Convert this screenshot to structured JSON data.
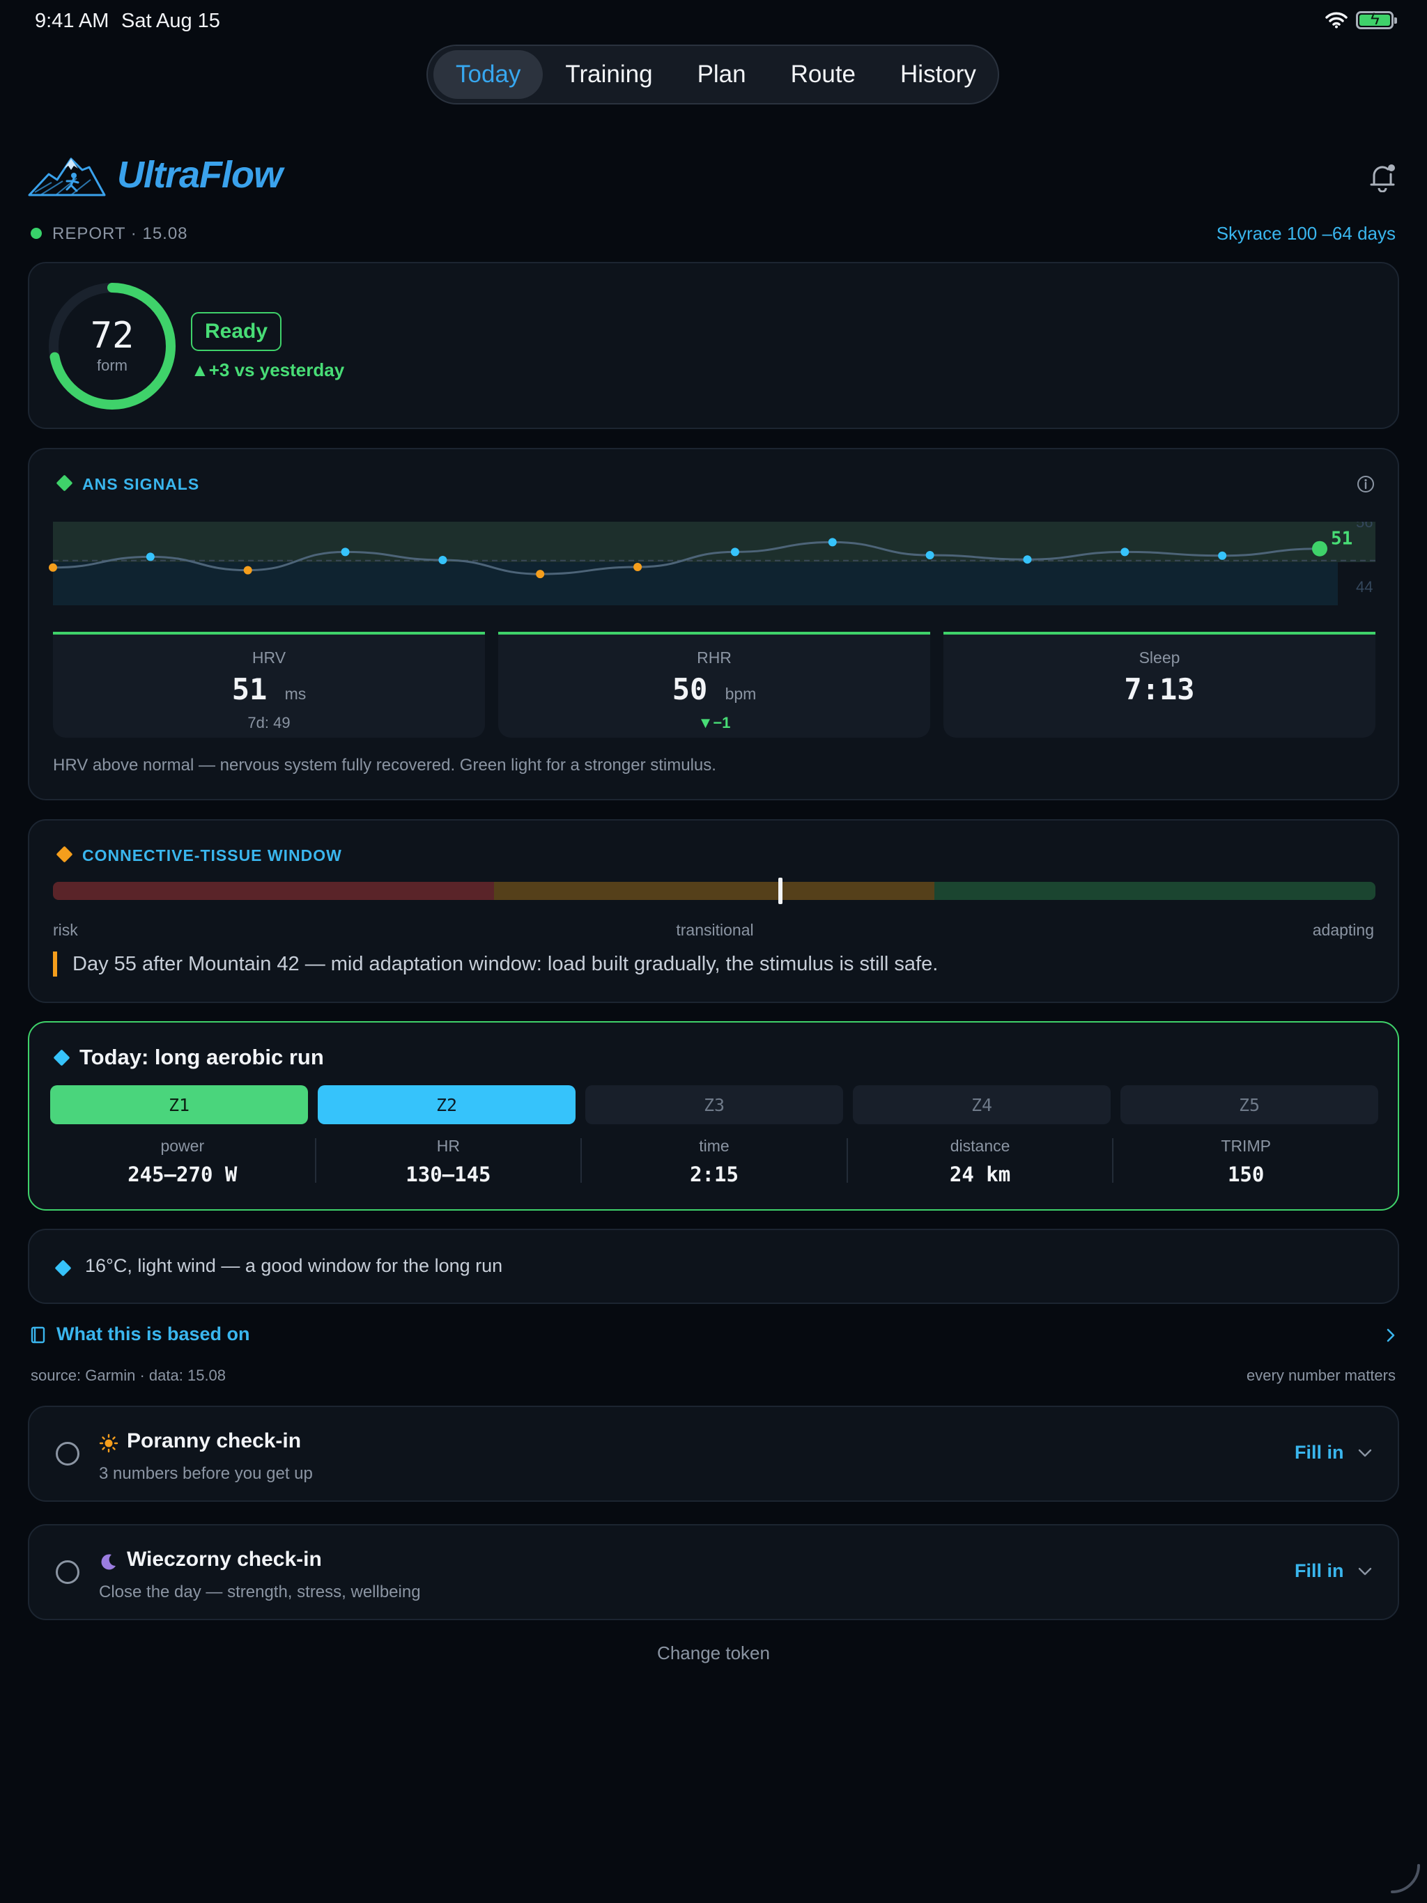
{
  "status_bar": {
    "time": "9:41 AM",
    "date": "Sat Aug 15"
  },
  "tabs": [
    {
      "label": "Today",
      "active": true
    },
    {
      "label": "Training",
      "active": false
    },
    {
      "label": "Plan",
      "active": false
    },
    {
      "label": "Route",
      "active": false
    },
    {
      "label": "History",
      "active": false
    }
  ],
  "header": {
    "brand": "UltraFlow",
    "logo_icon": "mountain-runner-icon",
    "bell_icon": "bell-icon"
  },
  "report": {
    "label": "REPORT · 15.08",
    "race": "Skyrace 100 –64 days"
  },
  "form": {
    "score": "72",
    "score_label": "form",
    "score_value": 72,
    "status": "Ready",
    "delta": "▲+3 vs yesterday"
  },
  "ans": {
    "title": "ANS SIGNALS",
    "chart_data": {
      "type": "line",
      "series": [
        {
          "values": [
            47.5,
            49.5,
            47,
            50.4,
            48.9,
            46.3,
            47.6,
            50.4,
            52.2,
            49.8,
            49,
            50.4,
            49.7,
            51
          ]
        }
      ],
      "point_status": [
        "below",
        "above",
        "below",
        "above",
        "above",
        "below",
        "below",
        "above",
        "above",
        "above",
        "above",
        "above",
        "above",
        "latest"
      ],
      "baseline": 48.8,
      "normal_band": [
        48.5,
        56
      ],
      "ylim": [
        40.5,
        56
      ],
      "tick_labels": [
        "56",
        "44"
      ],
      "last_label": "51"
    },
    "metrics": [
      {
        "label": "HRV",
        "value": "51",
        "unit": "ms",
        "sub": "7d: 49"
      },
      {
        "label": "RHR",
        "value": "50",
        "unit": "bpm",
        "sub": "▼−1"
      },
      {
        "label": "Sleep",
        "value": "7:13",
        "unit": "",
        "sub": ""
      }
    ],
    "note": "HRV above normal — nervous system fully recovered. Green light for a stronger stimulus."
  },
  "connective": {
    "title": "CONNECTIVE-TISSUE WINDOW",
    "marker_fraction": 0.55,
    "labels": {
      "left": "risk",
      "middle": "transitional",
      "right": "adapting"
    },
    "note": "Day 55 after Mountain 42 — mid adaptation window: load built gradually, the stimulus is still safe."
  },
  "today": {
    "title": "Today: long aerobic run",
    "zones": [
      "Z1",
      "Z2",
      "Z3",
      "Z4",
      "Z5"
    ],
    "stats": [
      {
        "label": "power",
        "value": "245–270 W"
      },
      {
        "label": "HR",
        "value": "130–145"
      },
      {
        "label": "time",
        "value": "2:15"
      },
      {
        "label": "distance",
        "value": "24 km"
      },
      {
        "label": "TRIMP",
        "value": "150"
      }
    ]
  },
  "weather": {
    "text": "16°C, light wind — a good window for the long run"
  },
  "based_on": {
    "link": "What this is based on",
    "source": "source: Garmin · data: 15.08",
    "tagline": "every number matters"
  },
  "checkins": [
    {
      "icon": "sun-icon",
      "title": "Poranny check-in",
      "sub": "3 numbers before you get up",
      "action": "Fill in"
    },
    {
      "icon": "moon-icon",
      "title": "Wieczorny check-in",
      "sub": "Close the day — strength, stress, wellbeing",
      "action": "Fill in"
    }
  ],
  "footer": {
    "change_token": "Change token"
  },
  "colors": {
    "accent_blue": "#3aa2ec",
    "green": "#3fd26a",
    "orange": "#f59e1c",
    "zone_z2": "#36c3fb"
  }
}
